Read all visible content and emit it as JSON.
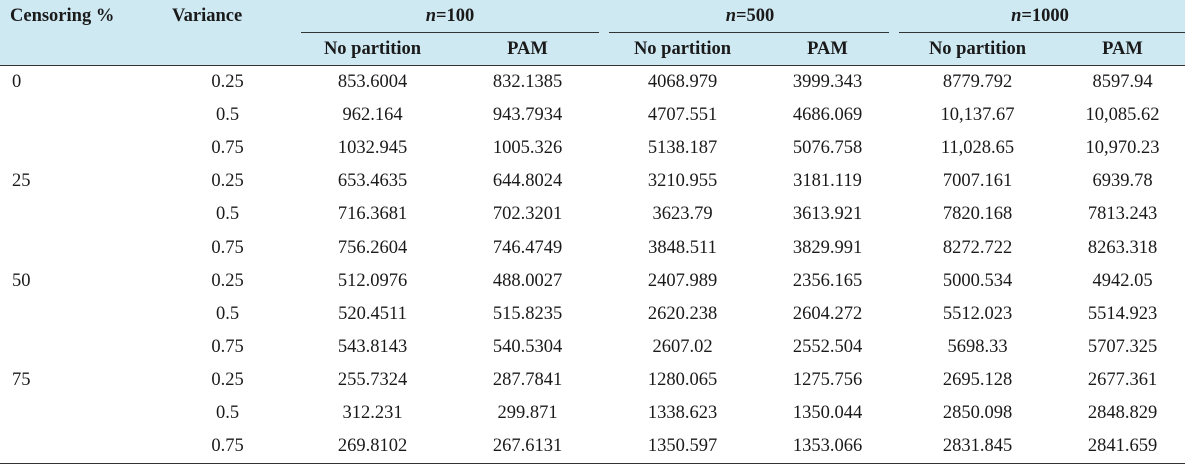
{
  "headers": {
    "censoring": "Censoring %",
    "variance": "Variance",
    "groups": [
      {
        "n_label": "n",
        "eq_value": "=100"
      },
      {
        "n_label": "n",
        "eq_value": "=500"
      },
      {
        "n_label": "n",
        "eq_value": "=1000"
      }
    ],
    "sub": [
      "No partition",
      "PAM",
      "No partition",
      "PAM",
      "No partition",
      "PAM"
    ]
  },
  "rows": [
    {
      "censoring": "0",
      "variance": "0.25",
      "values": [
        "853.6004",
        "832.1385",
        "4068.979",
        "3999.343",
        "8779.792",
        "8597.94"
      ]
    },
    {
      "censoring": "",
      "variance": "0.5",
      "values": [
        "962.164",
        "943.7934",
        "4707.551",
        "4686.069",
        "10,137.67",
        "10,085.62"
      ]
    },
    {
      "censoring": "",
      "variance": "0.75",
      "values": [
        "1032.945",
        "1005.326",
        "5138.187",
        "5076.758",
        "11,028.65",
        "10,970.23"
      ]
    },
    {
      "censoring": "25",
      "variance": "0.25",
      "values": [
        "653.4635",
        "644.8024",
        "3210.955",
        "3181.119",
        "7007.161",
        "6939.78"
      ]
    },
    {
      "censoring": "",
      "variance": "0.5",
      "values": [
        "716.3681",
        "702.3201",
        "3623.79",
        "3613.921",
        "7820.168",
        "7813.243"
      ]
    },
    {
      "censoring": "",
      "variance": "0.75",
      "values": [
        "756.2604",
        "746.4749",
        "3848.511",
        "3829.991",
        "8272.722",
        "8263.318"
      ]
    },
    {
      "censoring": "50",
      "variance": "0.25",
      "values": [
        "512.0976",
        "488.0027",
        "2407.989",
        "2356.165",
        "5000.534",
        "4942.05"
      ]
    },
    {
      "censoring": "",
      "variance": "0.5",
      "values": [
        "520.4511",
        "515.8235",
        "2620.238",
        "2604.272",
        "5512.023",
        "5514.923"
      ]
    },
    {
      "censoring": "",
      "variance": "0.75",
      "values": [
        "543.8143",
        "540.5304",
        "2607.02",
        "2552.504",
        "5698.33",
        "5707.325"
      ]
    },
    {
      "censoring": "75",
      "variance": "0.25",
      "values": [
        "255.7324",
        "287.7841",
        "1280.065",
        "1275.756",
        "2695.128",
        "2677.361"
      ]
    },
    {
      "censoring": "",
      "variance": "0.5",
      "values": [
        "312.231",
        "299.871",
        "1338.623",
        "1350.044",
        "2850.098",
        "2848.829"
      ]
    },
    {
      "censoring": "",
      "variance": "0.75",
      "values": [
        "269.8102",
        "267.6131",
        "1350.597",
        "1353.066",
        "2831.845",
        "2841.659"
      ]
    }
  ]
}
